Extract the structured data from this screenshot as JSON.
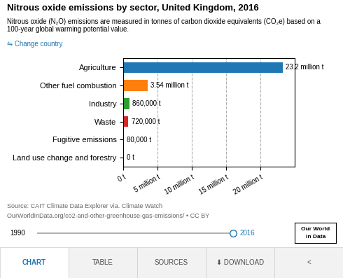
{
  "chart_data": {
    "type": "bar",
    "orientation": "horizontal",
    "title": "Nitrous oxide emissions by sector, United Kingdom, 2016",
    "subtitle": "Nitrous oxide (N₂O) emissions are measured in tonnes of carbon dioxide equivalents (CO₂e) based on a 100-year global warming potential value.",
    "categories": [
      "Agriculture",
      "Other fuel combustion",
      "Industry",
      "Waste",
      "Fugitive emissions",
      "Land use change and forestry"
    ],
    "values": [
      23200000,
      3540000,
      860000,
      720000,
      80000,
      0
    ],
    "value_labels": [
      "23.2 million t",
      "3.54 million t",
      "860,000 t",
      "720,000 t",
      "80,000 t",
      "0 t"
    ],
    "data_labels": true,
    "colors": [
      "#1f77b4",
      "#ff7f0e",
      "#2ca02c",
      "#d62728",
      "#9467bd",
      "#8c564b"
    ],
    "xlim": [
      0,
      25000000
    ],
    "xticks": [
      {
        "value": 0,
        "label": "0 t"
      },
      {
        "value": 5000000,
        "label": "5 million t"
      },
      {
        "value": 10000000,
        "label": "10 million t"
      },
      {
        "value": 15000000,
        "label": "15 million t"
      },
      {
        "value": 20000000,
        "label": "20 million t"
      }
    ],
    "grid": true,
    "annotations": [
      "⇋ Change country",
      "Source: CAIT Climate Data Explorer via. Climate Watch",
      "OurWorldInData.org/co2-and-other-greenhouse-gas-emissions/ • CC BY",
      "1990",
      "2016",
      "CHART",
      "TABLE",
      "SOURCES",
      "⬇ DOWNLOAD",
      "<",
      "Our World",
      "in Data"
    ]
  }
}
